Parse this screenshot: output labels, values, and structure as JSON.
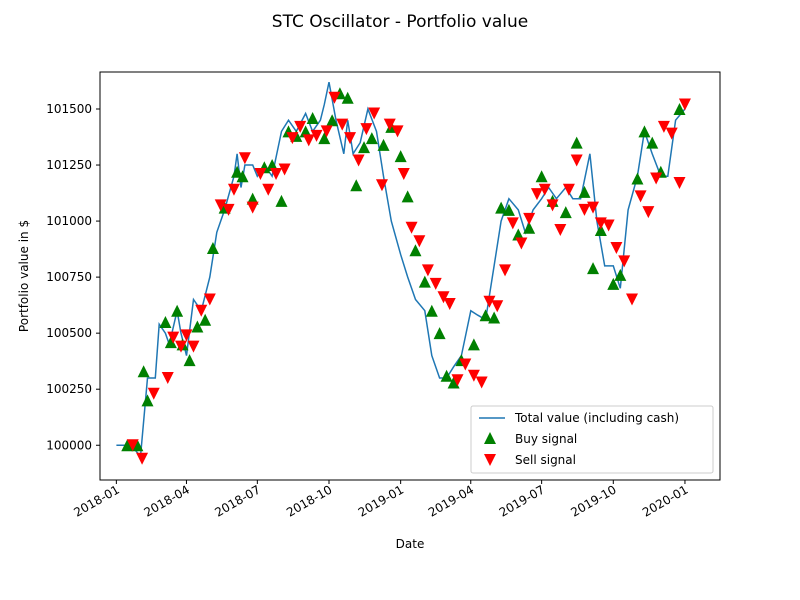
{
  "chart_data": {
    "type": "line",
    "title": "STC Oscillator - Portfolio value",
    "xlabel": "Date",
    "ylabel": "Portfolio value in $",
    "xlim": [
      "2017-12-11",
      "2020-02-15"
    ],
    "ylim": [
      99845,
      101665
    ],
    "x_ticks": [
      "2018-01",
      "2018-04",
      "2018-07",
      "2018-10",
      "2019-01",
      "2019-04",
      "2019-07",
      "2019-10",
      "2020-01"
    ],
    "y_ticks": [
      100000,
      100250,
      100500,
      100750,
      101000,
      101250,
      101500
    ],
    "y_tick_labels": [
      "100000",
      "100250",
      "100500",
      "100750",
      "101000",
      "101250",
      "101500"
    ],
    "legend": {
      "position": "lower-right",
      "entries": [
        "Total value (including cash)",
        "Buy signal",
        "Sell signal"
      ]
    },
    "colors": {
      "line": "#1f77b4",
      "buy": "#008000",
      "sell": "#ff0000"
    },
    "series": [
      {
        "name": "Total value (including cash)",
        "x": [
          "2018-01-01",
          "2018-01-20",
          "2018-02-01",
          "2018-02-10",
          "2018-02-20",
          "2018-02-25",
          "2018-03-05",
          "2018-03-10",
          "2018-03-20",
          "2018-03-25",
          "2018-04-01",
          "2018-04-10",
          "2018-04-20",
          "2018-05-01",
          "2018-05-10",
          "2018-05-20",
          "2018-06-01",
          "2018-06-05",
          "2018-06-10",
          "2018-06-15",
          "2018-06-25",
          "2018-07-01",
          "2018-07-10",
          "2018-07-20",
          "2018-08-01",
          "2018-08-10",
          "2018-08-20",
          "2018-09-01",
          "2018-09-10",
          "2018-09-20",
          "2018-09-25",
          "2018-10-01",
          "2018-10-10",
          "2018-10-20",
          "2018-10-25",
          "2018-11-01",
          "2018-11-10",
          "2018-11-20",
          "2018-12-01",
          "2018-12-10",
          "2018-12-20",
          "2019-01-01",
          "2019-01-10",
          "2019-01-20",
          "2019-02-01",
          "2019-02-10",
          "2019-02-20",
          "2019-03-01",
          "2019-03-10",
          "2019-03-20",
          "2019-04-01",
          "2019-04-10",
          "2019-04-20",
          "2019-05-01",
          "2019-05-10",
          "2019-05-20",
          "2019-06-01",
          "2019-06-10",
          "2019-06-20",
          "2019-07-01",
          "2019-07-10",
          "2019-07-20",
          "2019-08-01",
          "2019-08-10",
          "2019-08-20",
          "2019-09-01",
          "2019-09-10",
          "2019-09-20",
          "2019-10-01",
          "2019-10-10",
          "2019-10-20",
          "2019-11-01",
          "2019-11-10",
          "2019-11-20",
          "2019-12-01",
          "2019-12-10",
          "2019-12-20",
          "2020-01-01"
        ],
        "y": [
          100000,
          100000,
          99950,
          100300,
          100300,
          100540,
          100500,
          100450,
          100600,
          100500,
          100400,
          100650,
          100600,
          100750,
          100950,
          101050,
          101200,
          101300,
          101150,
          101250,
          101250,
          101200,
          101250,
          101200,
          101400,
          101450,
          101400,
          101480,
          101400,
          101450,
          101520,
          101620,
          101450,
          101300,
          101450,
          101300,
          101350,
          101500,
          101400,
          101200,
          101000,
          100850,
          100750,
          100650,
          100600,
          100400,
          100300,
          100300,
          100350,
          100400,
          100600,
          100580,
          100560,
          100800,
          101000,
          101100,
          101050,
          100950,
          101050,
          101100,
          101150,
          101100,
          101150,
          101100,
          101100,
          101300,
          101000,
          100800,
          100800,
          100700,
          101050,
          101200,
          101400,
          101300,
          101200,
          101200,
          101450,
          101500
        ]
      },
      {
        "name": "Buy signal",
        "x": [
          "2018-01-15",
          "2018-01-28",
          "2018-02-05",
          "2018-02-10",
          "2018-03-05",
          "2018-03-12",
          "2018-03-20",
          "2018-03-27",
          "2018-04-05",
          "2018-04-15",
          "2018-04-25",
          "2018-05-05",
          "2018-05-20",
          "2018-06-05",
          "2018-06-12",
          "2018-06-25",
          "2018-07-10",
          "2018-07-20",
          "2018-08-01",
          "2018-08-10",
          "2018-08-20",
          "2018-09-01",
          "2018-09-10",
          "2018-09-25",
          "2018-10-05",
          "2018-10-15",
          "2018-10-25",
          "2018-11-05",
          "2018-11-15",
          "2018-11-25",
          "2018-12-10",
          "2018-12-20",
          "2019-01-01",
          "2019-01-10",
          "2019-01-20",
          "2019-02-01",
          "2019-02-10",
          "2019-02-20",
          "2019-03-01",
          "2019-03-10",
          "2019-03-20",
          "2019-04-05",
          "2019-04-20",
          "2019-05-01",
          "2019-05-10",
          "2019-05-20",
          "2019-06-01",
          "2019-06-15",
          "2019-07-01",
          "2019-07-15",
          "2019-08-01",
          "2019-08-15",
          "2019-08-25",
          "2019-09-05",
          "2019-09-15",
          "2019-10-01",
          "2019-10-10",
          "2019-11-01",
          "2019-11-10",
          "2019-11-20",
          "2019-12-01",
          "2019-12-25"
        ],
        "y": [
          100000,
          100000,
          100330,
          100200,
          100550,
          100460,
          100600,
          100450,
          100380,
          100530,
          100560,
          100880,
          101060,
          101220,
          101200,
          101100,
          101240,
          101250,
          101090,
          101400,
          101380,
          101400,
          101460,
          101370,
          101450,
          101570,
          101550,
          101160,
          101330,
          101370,
          101340,
          101420,
          101290,
          101110,
          100870,
          100730,
          100600,
          100500,
          100310,
          100280,
          100380,
          100450,
          100580,
          100570,
          101060,
          101050,
          100940,
          100970,
          101200,
          101090,
          101040,
          101350,
          101130,
          100790,
          100960,
          100720,
          100760,
          101190,
          101400,
          101350,
          101220,
          101500
        ]
      },
      {
        "name": "Sell signal",
        "x": [
          "2018-01-22",
          "2018-02-03",
          "2018-02-18",
          "2018-03-08",
          "2018-03-15",
          "2018-03-25",
          "2018-04-01",
          "2018-04-10",
          "2018-04-20",
          "2018-05-01",
          "2018-05-15",
          "2018-05-25",
          "2018-06-01",
          "2018-06-15",
          "2018-06-25",
          "2018-07-05",
          "2018-07-15",
          "2018-07-25",
          "2018-08-05",
          "2018-08-15",
          "2018-08-25",
          "2018-09-05",
          "2018-09-15",
          "2018-09-28",
          "2018-10-08",
          "2018-10-18",
          "2018-10-28",
          "2018-11-08",
          "2018-11-18",
          "2018-11-28",
          "2018-12-08",
          "2018-12-18",
          "2018-12-28",
          "2019-01-05",
          "2019-01-15",
          "2019-01-25",
          "2019-02-05",
          "2019-02-15",
          "2019-02-25",
          "2019-03-05",
          "2019-03-15",
          "2019-03-25",
          "2019-04-05",
          "2019-04-15",
          "2019-04-25",
          "2019-05-05",
          "2019-05-15",
          "2019-05-25",
          "2019-06-05",
          "2019-06-15",
          "2019-06-25",
          "2019-07-05",
          "2019-07-15",
          "2019-07-25",
          "2019-08-05",
          "2019-08-15",
          "2019-08-25",
          "2019-09-05",
          "2019-09-15",
          "2019-09-25",
          "2019-10-05",
          "2019-10-15",
          "2019-10-25",
          "2019-11-05",
          "2019-11-15",
          "2019-11-25",
          "2019-12-05",
          "2019-12-15",
          "2019-12-25",
          "2020-01-01"
        ],
        "y": [
          100000,
          99940,
          100230,
          100300,
          100480,
          100440,
          100490,
          100440,
          100600,
          100650,
          101070,
          101050,
          101140,
          101280,
          101060,
          101210,
          101140,
          101210,
          101230,
          101370,
          101420,
          101360,
          101380,
          101400,
          101550,
          101430,
          101370,
          101270,
          101410,
          101480,
          101160,
          101430,
          101400,
          101210,
          100970,
          100910,
          100780,
          100720,
          100660,
          100630,
          100290,
          100360,
          100310,
          100280,
          100640,
          100620,
          100780,
          100990,
          100900,
          101010,
          101120,
          101140,
          101070,
          100960,
          101140,
          101270,
          101050,
          101060,
          100990,
          100980,
          100880,
          100820,
          100650,
          101110,
          101040,
          101190,
          101420,
          101390,
          101170,
          101520
        ]
      }
    ]
  }
}
